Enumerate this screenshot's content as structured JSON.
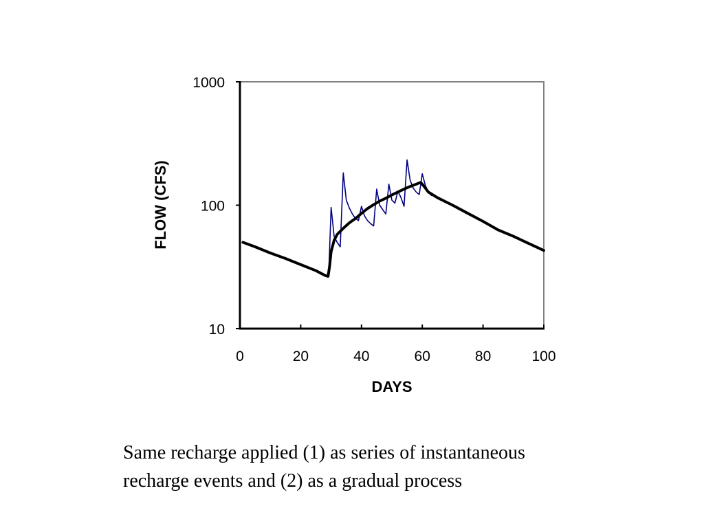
{
  "chart_data": {
    "type": "line",
    "title": "",
    "xlabel": "DAYS",
    "ylabel": "FLOW (CFS)",
    "xlim": [
      0,
      100
    ],
    "ylim": [
      10,
      1000
    ],
    "y_scale": "log",
    "grid": false,
    "legend": "none",
    "x_ticks": [
      0,
      20,
      40,
      60,
      80,
      100
    ],
    "y_ticks": [
      10,
      100,
      1000
    ],
    "x_tick_labels": [
      "0",
      "20",
      "40",
      "60",
      "80",
      "100"
    ],
    "y_tick_labels": [
      "10",
      "100",
      "1000"
    ],
    "series": [
      {
        "color": "#000000",
        "style": "thick",
        "points": [
          [
            1,
            50
          ],
          [
            5,
            46
          ],
          [
            10,
            41
          ],
          [
            15,
            37
          ],
          [
            20,
            33
          ],
          [
            25,
            29.5
          ],
          [
            28,
            27
          ],
          [
            29,
            26.5
          ],
          [
            29.5,
            32
          ],
          [
            30,
            42
          ],
          [
            31,
            52
          ],
          [
            32,
            58
          ],
          [
            34,
            65
          ],
          [
            36,
            72
          ],
          [
            38,
            78
          ],
          [
            40,
            86
          ],
          [
            42,
            94
          ],
          [
            44,
            101
          ],
          [
            46,
            108
          ],
          [
            48,
            114
          ],
          [
            50,
            121
          ],
          [
            52,
            128
          ],
          [
            54,
            135
          ],
          [
            56,
            142
          ],
          [
            58,
            148
          ],
          [
            59.5,
            153
          ],
          [
            60,
            148
          ],
          [
            61,
            138
          ],
          [
            62,
            128
          ],
          [
            65,
            115
          ],
          [
            70,
            100
          ],
          [
            75,
            86
          ],
          [
            80,
            74
          ],
          [
            85,
            63
          ],
          [
            90,
            56
          ],
          [
            95,
            49
          ],
          [
            100,
            43
          ]
        ]
      },
      {
        "color": "#000080",
        "style": "thin",
        "points": [
          [
            29.2,
            27
          ],
          [
            30,
            96
          ],
          [
            31,
            56
          ],
          [
            32,
            50
          ],
          [
            33,
            46
          ],
          [
            34,
            183
          ],
          [
            35,
            110
          ],
          [
            36,
            95
          ],
          [
            37,
            85
          ],
          [
            38,
            78
          ],
          [
            39,
            75
          ],
          [
            40,
            98
          ],
          [
            41,
            82
          ],
          [
            42,
            75
          ],
          [
            43,
            71
          ],
          [
            44,
            68
          ],
          [
            45,
            135
          ],
          [
            46,
            100
          ],
          [
            47,
            92
          ],
          [
            48,
            85
          ],
          [
            49,
            148
          ],
          [
            50,
            110
          ],
          [
            51,
            104
          ],
          [
            52,
            130
          ],
          [
            53,
            115
          ],
          [
            54,
            98
          ],
          [
            55,
            233
          ],
          [
            56,
            160
          ],
          [
            57,
            138
          ],
          [
            58,
            128
          ],
          [
            59,
            122
          ],
          [
            60,
            180
          ],
          [
            61,
            145
          ],
          [
            62,
            128
          ],
          [
            63,
            120
          ]
        ]
      }
    ]
  },
  "caption": {
    "line1": "Same recharge applied (1) as series of instantaneous",
    "line2": "recharge events and (2) as a gradual process"
  }
}
